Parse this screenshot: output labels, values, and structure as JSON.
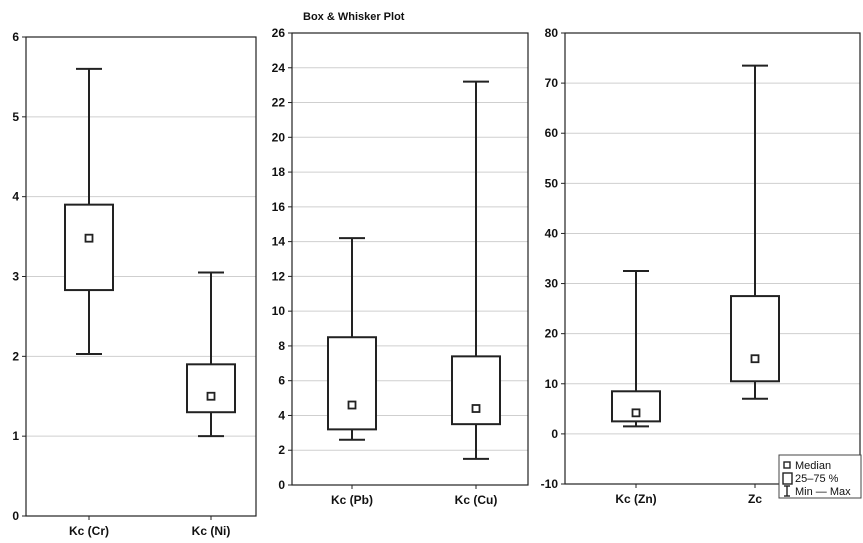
{
  "title": "Box & Whisker Plot",
  "chart_data": [
    {
      "type": "box",
      "ylim": [
        0,
        6
      ],
      "yticks": [
        "0",
        "1",
        "2",
        "3",
        "4",
        "5",
        "6"
      ],
      "grid": true,
      "categories": [
        "Kc (Cr)",
        "Kc (Ni)"
      ],
      "boxes": [
        {
          "min": 2.03,
          "q1": 2.83,
          "median": 3.48,
          "q3": 3.9,
          "max": 5.6
        },
        {
          "min": 1.0,
          "q1": 1.3,
          "median": 1.5,
          "q3": 1.9,
          "max": 3.05
        }
      ]
    },
    {
      "type": "box",
      "ylim": [
        0,
        26
      ],
      "yticks": [
        "0",
        "2",
        "4",
        "6",
        "8",
        "10",
        "12",
        "14",
        "16",
        "18",
        "20",
        "22",
        "24",
        "26"
      ],
      "grid": true,
      "categories": [
        "Kc (Pb)",
        "Kc (Cu)"
      ],
      "boxes": [
        {
          "min": 2.6,
          "q1": 3.2,
          "median": 4.6,
          "q3": 8.5,
          "max": 14.2
        },
        {
          "min": 1.5,
          "q1": 3.5,
          "median": 4.4,
          "q3": 7.4,
          "max": 23.2
        }
      ]
    },
    {
      "type": "box",
      "ylim": [
        -10,
        80
      ],
      "yticks": [
        "-10",
        "0",
        "10",
        "20",
        "30",
        "40",
        "50",
        "60",
        "70",
        "80"
      ],
      "grid": true,
      "categories": [
        "Kc (Zn)",
        "Zc"
      ],
      "boxes": [
        {
          "min": 1.5,
          "q1": 2.5,
          "median": 4.2,
          "q3": 8.5,
          "max": 32.5
        },
        {
          "min": 7.0,
          "q1": 10.5,
          "median": 15.0,
          "q3": 27.5,
          "max": 73.5
        }
      ]
    }
  ],
  "legend": {
    "placement": "bottom-right",
    "items": [
      {
        "icon": "median-marker-icon",
        "label": "Median"
      },
      {
        "icon": "box-icon",
        "label": "25–75 %"
      },
      {
        "icon": "whisker-icon",
        "label": "Min — Max"
      }
    ]
  }
}
